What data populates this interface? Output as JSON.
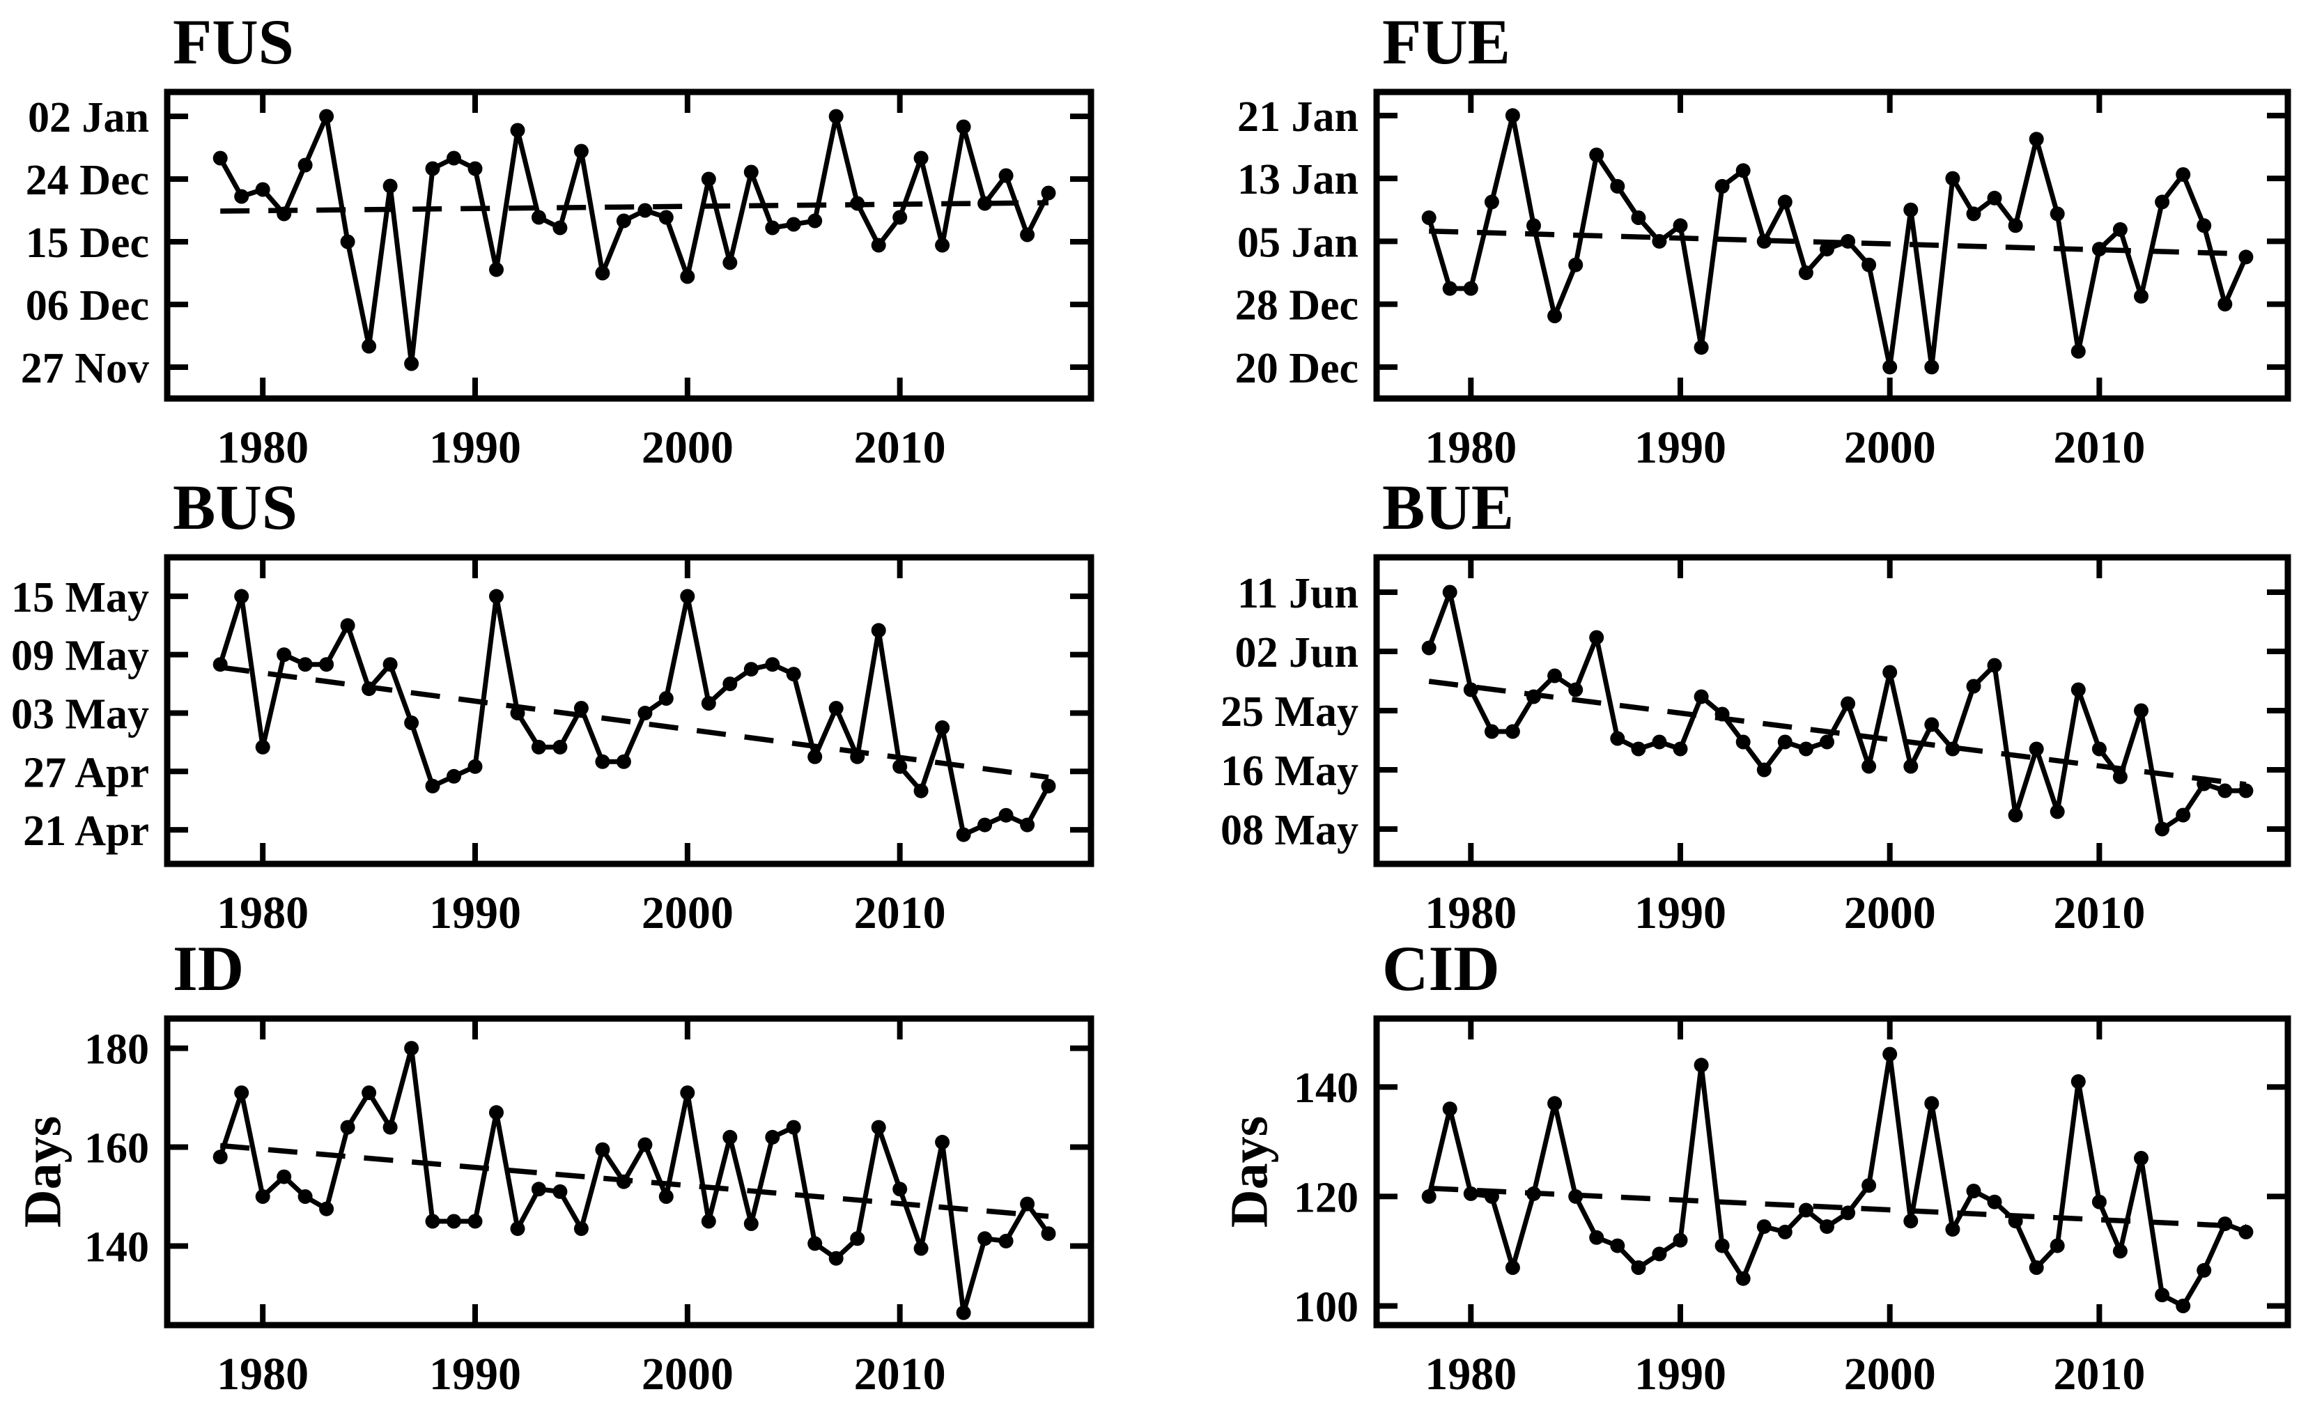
{
  "figure": {
    "background": "#ffffff",
    "axis_color": "#000000",
    "line_color": "#000000",
    "trend_style": "dashed",
    "marker": "dot"
  },
  "chart_data": {
    "type": "line",
    "grid": false,
    "legend": false,
    "years": [
      1978,
      1979,
      1980,
      1981,
      1982,
      1983,
      1984,
      1985,
      1986,
      1987,
      1988,
      1989,
      1990,
      1991,
      1992,
      1993,
      1994,
      1995,
      1996,
      1997,
      1998,
      1999,
      2000,
      2001,
      2002,
      2003,
      2004,
      2005,
      2006,
      2007,
      2008,
      2009,
      2010,
      2011,
      2012,
      2013,
      2014,
      2015,
      2016,
      2017
    ],
    "xlim": [
      1975.5,
      2019
    ],
    "xticks": [
      1980,
      1990,
      2000,
      2010
    ],
    "panels": [
      {
        "id": "FUS",
        "title": "FUS",
        "ylabel": null,
        "ylim": [
          326.5,
          370.5
        ],
        "yticks": [
          {
            "v": 367,
            "label": "02 Jan"
          },
          {
            "v": 358,
            "label": "24 Dec"
          },
          {
            "v": 349,
            "label": "15 Dec"
          },
          {
            "v": 340,
            "label": "06 Dec"
          },
          {
            "v": 331,
            "label": "27 Nov"
          }
        ],
        "values": [
          361,
          355.5,
          356.5,
          353,
          360,
          367,
          349,
          334,
          357,
          331.5,
          359.5,
          361,
          359.5,
          345,
          365,
          352.5,
          351,
          362,
          344.5,
          352,
          353.5,
          352.5,
          344,
          358,
          346,
          359,
          351,
          351.5,
          352,
          367,
          354.5,
          348.5,
          352.5,
          361,
          348.5,
          365.5,
          354.5,
          358.5,
          350,
          356
        ],
        "trend": [
          353.4,
          354.6
        ]
      },
      {
        "id": "FUE",
        "title": "FUE",
        "ylabel": null,
        "ylim": [
          350,
          389
        ],
        "yticks": [
          {
            "v": 386,
            "label": "21 Jan"
          },
          {
            "v": 378,
            "label": "13 Jan"
          },
          {
            "v": 370,
            "label": "05 Jan"
          },
          {
            "v": 362,
            "label": "28 Dec"
          },
          {
            "v": 354,
            "label": "20 Dec"
          }
        ],
        "values": [
          373,
          364,
          364,
          375,
          386,
          372,
          360.5,
          367,
          381,
          377,
          373,
          370,
          372,
          356.5,
          377,
          379,
          370,
          375,
          366,
          369,
          370,
          367,
          354,
          374,
          354,
          378,
          373.5,
          375.5,
          372,
          383,
          373.5,
          356,
          369,
          371.5,
          363,
          375,
          378.5,
          372,
          362,
          368
        ],
        "trend": [
          371.3,
          368.4
        ]
      },
      {
        "id": "BUS",
        "title": "BUS",
        "ylabel": null,
        "ylim": [
          17.5,
          49
        ],
        "yticks": [
          {
            "v": 45,
            "label": "15 May"
          },
          {
            "v": 39,
            "label": "09 May"
          },
          {
            "v": 33,
            "label": "03 May"
          },
          {
            "v": 27,
            "label": "27 Apr"
          },
          {
            "v": 21,
            "label": "21 Apr"
          }
        ],
        "values": [
          38,
          45,
          29.5,
          39,
          38,
          38,
          42,
          35.5,
          38,
          32,
          25.5,
          26.5,
          27.5,
          45,
          33,
          29.5,
          29.5,
          33.5,
          28,
          28,
          33,
          34.5,
          45,
          34,
          36,
          37.5,
          38,
          37,
          28.5,
          33.5,
          28.5,
          41.5,
          27.5,
          25,
          31.5,
          20.5,
          21.5,
          22.5,
          21.5,
          25.5
        ],
        "trend": [
          37.7,
          26.4
        ]
      },
      {
        "id": "BUE",
        "title": "BUE",
        "ylabel": null,
        "ylim": [
          3,
          47
        ],
        "yticks": [
          {
            "v": 42,
            "label": "11 Jun"
          },
          {
            "v": 33.5,
            "label": "02 Jun"
          },
          {
            "v": 25,
            "label": "25 May"
          },
          {
            "v": 16.5,
            "label": "16 May"
          },
          {
            "v": 8,
            "label": "08 May"
          }
        ],
        "values": [
          34,
          42,
          28,
          22,
          22,
          27,
          30,
          28,
          35.5,
          21,
          19.5,
          20.5,
          19.5,
          27,
          24.5,
          20.5,
          16.5,
          20.5,
          19.5,
          20.5,
          26,
          17,
          30.5,
          17,
          23,
          19.5,
          28.5,
          31.5,
          10,
          19.5,
          10.5,
          28,
          19.5,
          15.5,
          25,
          8,
          10,
          14.5,
          13.5,
          13.5
        ],
        "trend": [
          29.2,
          14.4
        ]
      },
      {
        "id": "ID",
        "title": "ID",
        "ylabel": "Days",
        "ylim": [
          124,
          186
        ],
        "yticks": [
          {
            "v": 180,
            "label": "180"
          },
          {
            "v": 160,
            "label": "160"
          },
          {
            "v": 140,
            "label": "140"
          }
        ],
        "values": [
          158,
          171,
          150,
          154,
          150,
          147.5,
          164,
          171,
          164,
          180,
          145,
          145,
          145,
          167,
          143.5,
          151.5,
          151,
          143.5,
          159.5,
          153,
          160.5,
          150,
          171,
          145,
          162,
          144.5,
          162,
          164,
          140.5,
          137.5,
          141.5,
          164,
          151.5,
          139.5,
          161,
          126.5,
          141.5,
          141,
          148.5,
          142.5
        ],
        "trend": [
          160.3,
          146
        ]
      },
      {
        "id": "CID",
        "title": "CID",
        "ylabel": "Days",
        "ylim": [
          96.5,
          152.5
        ],
        "yticks": [
          {
            "v": 140,
            "label": "140"
          },
          {
            "v": 120,
            "label": "120"
          },
          {
            "v": 100,
            "label": "100"
          }
        ],
        "values": [
          120,
          136,
          120.5,
          120,
          107,
          120.5,
          137,
          120,
          112.5,
          111,
          107,
          109.5,
          112,
          144,
          111,
          105,
          114.5,
          113.5,
          117.5,
          114.5,
          117,
          122,
          146,
          115.5,
          137,
          114,
          121,
          119,
          115.5,
          107,
          111,
          141,
          119,
          110,
          127,
          102,
          100,
          106.5,
          115,
          113.5
        ],
        "trend": [
          121.5,
          114.5
        ]
      }
    ]
  }
}
